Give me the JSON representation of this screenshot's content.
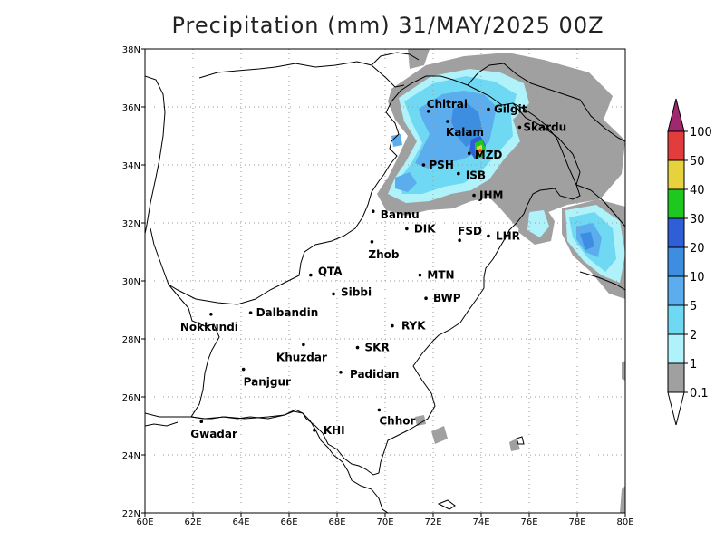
{
  "title": "Precipitation (mm) 31/MAY/2025 00Z",
  "lon_ticks": [
    "60E",
    "62E",
    "64E",
    "66E",
    "68E",
    "70E",
    "72E",
    "74E",
    "76E",
    "78E",
    "80E"
  ],
  "lat_ticks": [
    "22N",
    "24N",
    "26N",
    "28N",
    "30N",
    "32N",
    "34N",
    "36N",
    "38N"
  ],
  "cities": [
    {
      "name": "Chitral",
      "lon": 71.8,
      "lat": 35.85,
      "dx": -2,
      "dy": -4
    },
    {
      "name": "Gilgit",
      "lon": 74.3,
      "lat": 35.92,
      "dx": 6,
      "dy": 4
    },
    {
      "name": "Kalam",
      "lon": 72.6,
      "lat": 35.5,
      "dx": -2,
      "dy": 16
    },
    {
      "name": "Skardu",
      "lon": 75.6,
      "lat": 35.3,
      "dx": 4,
      "dy": 4
    },
    {
      "name": "MZD",
      "lon": 73.5,
      "lat": 34.4,
      "dx": 6,
      "dy": 6
    },
    {
      "name": "PSH",
      "lon": 71.6,
      "lat": 34.0,
      "dx": 6,
      "dy": 4
    },
    {
      "name": "ISB",
      "lon": 73.05,
      "lat": 33.7,
      "dx": 8,
      "dy": 6
    },
    {
      "name": "JHM",
      "lon": 73.7,
      "lat": 32.95,
      "dx": 6,
      "dy": 4
    },
    {
      "name": "Bannu",
      "lon": 69.5,
      "lat": 32.4,
      "dx": 8,
      "dy": 8
    },
    {
      "name": "DIK",
      "lon": 70.9,
      "lat": 31.8,
      "dx": 8,
      "dy": 4
    },
    {
      "name": "FSD",
      "lon": 73.1,
      "lat": 31.4,
      "dx": -2,
      "dy": -6
    },
    {
      "name": "LHR",
      "lon": 74.3,
      "lat": 31.55,
      "dx": 8,
      "dy": 4
    },
    {
      "name": "Zhob",
      "lon": 69.45,
      "lat": 31.35,
      "dx": -4,
      "dy": 18
    },
    {
      "name": "QTA",
      "lon": 66.9,
      "lat": 30.2,
      "dx": 8,
      "dy": 0
    },
    {
      "name": "MTN",
      "lon": 71.45,
      "lat": 30.2,
      "dx": 8,
      "dy": 4
    },
    {
      "name": "Sibbi",
      "lon": 67.85,
      "lat": 29.55,
      "dx": 8,
      "dy": 2
    },
    {
      "name": "BWP",
      "lon": 71.7,
      "lat": 29.4,
      "dx": 8,
      "dy": 4
    },
    {
      "name": "Dalbandin",
      "lon": 64.4,
      "lat": 28.9,
      "dx": 6,
      "dy": 4
    },
    {
      "name": "Nokkundi",
      "lon": 62.75,
      "lat": 28.85,
      "dx": -34,
      "dy": 18
    },
    {
      "name": "RYK",
      "lon": 70.3,
      "lat": 28.45,
      "dx": 10,
      "dy": 4
    },
    {
      "name": "SKR",
      "lon": 68.85,
      "lat": 27.7,
      "dx": 8,
      "dy": 4
    },
    {
      "name": "Khuzdar",
      "lon": 66.6,
      "lat": 27.8,
      "dx": -30,
      "dy": 18
    },
    {
      "name": "Padidan",
      "lon": 68.15,
      "lat": 26.85,
      "dx": 10,
      "dy": 6
    },
    {
      "name": "Panjgur",
      "lon": 64.1,
      "lat": 26.95,
      "dx": 0,
      "dy": 18
    },
    {
      "name": "Chhor",
      "lon": 69.75,
      "lat": 25.55,
      "dx": 0,
      "dy": 16
    },
    {
      "name": "KHI",
      "lon": 67.05,
      "lat": 24.85,
      "dx": 10,
      "dy": 4
    },
    {
      "name": "Gwadar",
      "lon": 62.35,
      "lat": 25.15,
      "dx": -12,
      "dy": 18
    }
  ],
  "colorbar": {
    "labels": [
      "100",
      "50",
      "40",
      "30",
      "20",
      "10",
      "5",
      "2",
      "1",
      "0.1"
    ],
    "colors": [
      "#e23c3c",
      "#e6d23c",
      "#1ec81e",
      "#2e5fd6",
      "#3d8ee0",
      "#5cadee",
      "#6fd8f2",
      "#b0f2fa",
      "#a0a0a0"
    ],
    "top_color": "#a0286e",
    "bottom_color": "#ffffff"
  }
}
